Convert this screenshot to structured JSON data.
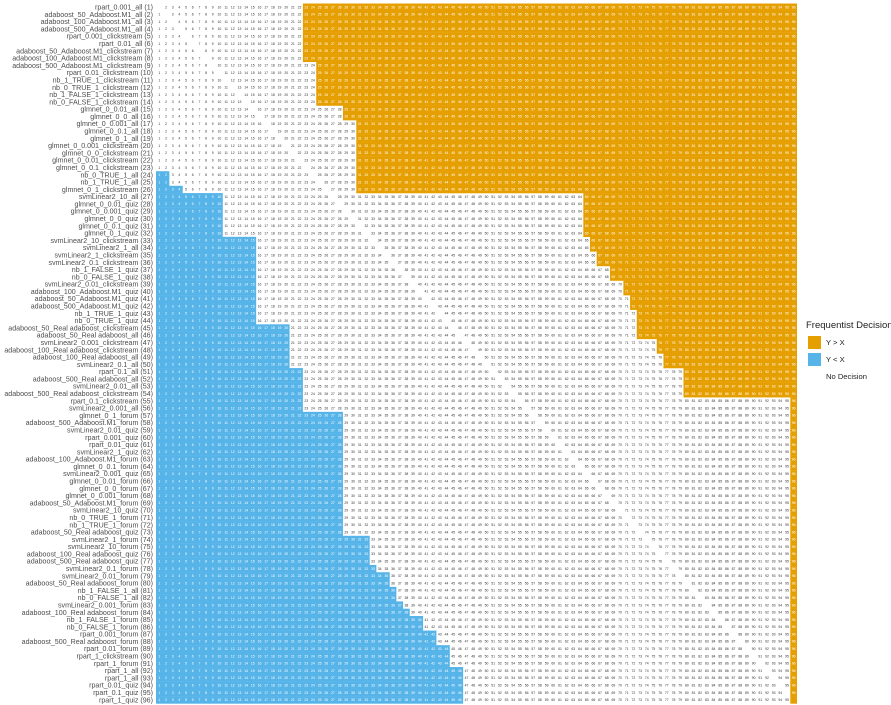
{
  "chart_data": {
    "type": "heatmap",
    "title": "",
    "xlabel": "",
    "ylabel": "",
    "rows": [
      "rpart_0.001_all (1)",
      "adaboost_50_Adaboost.M1_all (2)",
      "adaboost_100_Adaboost.M1_all (3)",
      "adaboost_500_Adaboost.M1_all (4)",
      "rpart_0.001_clickstream (5)",
      "rpart_0.01_all (6)",
      "adaboost_50_Adaboost.M1_clickstream (7)",
      "adaboost_100_Adaboost.M1_clickstream (8)",
      "adaboost_500_Adaboost.M1_clickstream (9)",
      "rpart_0.01_clickstream (10)",
      "nb_1_TRUE_1_clickstream (11)",
      "nb_0_TRUE_1_clickstream (12)",
      "nb_1_FALSE_1_clickstream (13)",
      "nb_0_FALSE_1_clickstream (14)",
      "glmnet_0_0.01_all (15)",
      "glmnet_0_0_all (16)",
      "glmnet_0_0.001_all (17)",
      "glmnet_0_0.1_all (18)",
      "glmnet_0_1_all (19)",
      "glmnet_0_0.001_clickstream (20)",
      "glmnet_0_0_clickstream (21)",
      "glmnet_0_0.01_clickstream (22)",
      "glmnet_0_0.1_clickstream (23)",
      "nb_0_TRUE_1_all (24)",
      "nb_1_TRUE_1_all (25)",
      "glmnet_0_1_clickstream (26)",
      "svmLinear2_10_all (27)",
      "glmnet_0_0.01_quiz (28)",
      "glmnet_0_0.001_quiz (29)",
      "glmnet_0_0_quiz (30)",
      "glmnet_0_0.1_quiz (31)",
      "glmnet_0_1_quiz (32)",
      "svmLinear2_10_clickstream (33)",
      "svmLinear2_1_all (34)",
      "svmLinear2_1_clickstream (35)",
      "svmLinear2_0.1_clickstream (36)",
      "nb_1_FALSE_1_quiz (37)",
      "nb_0_FALSE_1_quiz (38)",
      "svmLinear2_0.01_clickstream (39)",
      "adaboost_100_Adaboost.M1_quiz (40)",
      "adaboost_50_Adaboost.M1_quiz (41)",
      "adaboost_500_Adaboost.M1_quiz (42)",
      "nb_1_TRUE_1_quiz (43)",
      "nb_0_TRUE_1_quiz (44)",
      "adaboost_50_Real adaboost_clickstream (45)",
      "adaboost_50_Real adaboost_all (46)",
      "svmLinear2_0.001_clickstream (47)",
      "adaboost_100_Real adaboost_clickstream (48)",
      "adaboost_100_Real adaboost_all (49)",
      "svmLinear2_0.1_all (50)",
      "rpart_0.1_all (51)",
      "adaboost_500_Real adaboost_all (52)",
      "svmLinear2_0.01_all (53)",
      "adaboost_500_Real adaboost_clickstream (54)",
      "rpart_0.1_clickstream (55)",
      "svmLinear2_0.001_all (56)",
      "glmnet_0_1_forum (57)",
      "adaboost_500_Adaboost.M1_forum (58)",
      "svmLinear2_0.01_quiz (59)",
      "rpart_0.001_quiz (60)",
      "rpart_0.01_quiz (61)",
      "svmLinear2_1_quiz (62)",
      "adaboost_100_Adaboost.M1_forum (63)",
      "glmnet_0_0.1_forum (64)",
      "svmLinear2_0.001_quiz (65)",
      "glmnet_0_0.01_forum (66)",
      "glmnet_0_0_forum (67)",
      "glmnet_0_0.001_forum (68)",
      "adaboost_50_Adaboost.M1_forum (69)",
      "svmLinear2_10_quiz (70)",
      "nb_0_TRUE_1_forum (71)",
      "nb_1_TRUE_1_forum (72)",
      "adaboost_50_Real adaboost_quiz (73)",
      "svmLinear2_1_forum (74)",
      "svmLinear2_10_forum (75)",
      "adaboost_100_Real adaboost_quiz (76)",
      "adaboost_500_Real adaboost_quiz (77)",
      "svmLinear2_0.1_forum (78)",
      "svmLinear2_0.01_forum (79)",
      "adaboost_50_Real adaboost_forum (80)",
      "nb_1_FALSE_1_all (81)",
      "nb_0_FALSE_1_all (82)",
      "svmLinear2_0.001_forum (83)",
      "adaboost_100_Real adaboost_forum (84)",
      "nb_1_FALSE_1_forum (85)",
      "nb_0_FALSE_1_forum (86)",
      "rpart_0.001_forum (87)",
      "adaboost_500_Real adaboost_forum (88)",
      "rpart_0.01_forum (89)",
      "rpart_1_clickstream (90)",
      "rpart_1_forum (91)",
      "rpart_1_all (92)",
      "rpart_1_all (93)",
      "rpart_0.01_quiz (94)",
      "rpart_0.1_quiz (95)",
      "rpart_1_quiz (96)"
    ],
    "columns": [
      1,
      2,
      3,
      4,
      5,
      6,
      7,
      8,
      9,
      10,
      11,
      12,
      13,
      14,
      15,
      16,
      17,
      18,
      19,
      20,
      21,
      22,
      23,
      24,
      25,
      26,
      27,
      28,
      29,
      30,
      31,
      32,
      33,
      34,
      35,
      36,
      37,
      38,
      39,
      40,
      41,
      42,
      43,
      44,
      45,
      46,
      47,
      48,
      49,
      50,
      51,
      52,
      53,
      54,
      55,
      56,
      57,
      58,
      59,
      60,
      61,
      62,
      63,
      64,
      65,
      66,
      67,
      68,
      69,
      70,
      71,
      72,
      73,
      74,
      75,
      76,
      77,
      78,
      79,
      80,
      81,
      82,
      83,
      84,
      85,
      86,
      87,
      88,
      89,
      90,
      91,
      92,
      93,
      94,
      95,
      96
    ],
    "blue_end_col": [
      0,
      0,
      0,
      0,
      0,
      0,
      0,
      0,
      0,
      0,
      0,
      0,
      0,
      0,
      0,
      0,
      0,
      0,
      0,
      0,
      0,
      0,
      0,
      2,
      2,
      4,
      10,
      10,
      10,
      10,
      10,
      10,
      15,
      15,
      15,
      15,
      15,
      15,
      15,
      15,
      15,
      15,
      15,
      15,
      20,
      20,
      20,
      20,
      20,
      20,
      22,
      22,
      22,
      22,
      22,
      22,
      28,
      28,
      28,
      28,
      28,
      28,
      28,
      28,
      28,
      28,
      28,
      28,
      28,
      28,
      28,
      28,
      28,
      32,
      32,
      32,
      32,
      33,
      35,
      35,
      36,
      36,
      37,
      38,
      40,
      40,
      42,
      42,
      44,
      44,
      44,
      46,
      46,
      46,
      46,
      46
    ],
    "orange_start_col": [
      23,
      23,
      23,
      23,
      23,
      23,
      23,
      23,
      25,
      25,
      25,
      25,
      25,
      25,
      29,
      29,
      31,
      31,
      31,
      31,
      31,
      31,
      31,
      31,
      31,
      31,
      65,
      65,
      65,
      65,
      65,
      65,
      66,
      66,
      67,
      67,
      69,
      69,
      71,
      71,
      72,
      72,
      73,
      73,
      73,
      73,
      76,
      76,
      77,
      77,
      80,
      80,
      80,
      80,
      96,
      96,
      96,
      96,
      96,
      96,
      96,
      96,
      96,
      96,
      96,
      96,
      96,
      96,
      96,
      96,
      96,
      96,
      96,
      96,
      96,
      96,
      96,
      96,
      96,
      96,
      96,
      96,
      96,
      96,
      96,
      96,
      96,
      96,
      96,
      96,
      96,
      96,
      96,
      96,
      96,
      96
    ],
    "legend": {
      "title": "Frequentist Decision",
      "entries": [
        {
          "label": "Y > X",
          "color": "#E69F00"
        },
        {
          "label": "Y < X",
          "color": "#56B4E9"
        },
        {
          "label": "No Decision",
          "color": "#ffffff"
        }
      ],
      "placement": "right"
    },
    "colors": {
      "orange": "#E69F00",
      "blue": "#56B4E9",
      "none": "#ffffff",
      "text_on_color": "#ffffff",
      "text_on_white": "#333333"
    }
  }
}
